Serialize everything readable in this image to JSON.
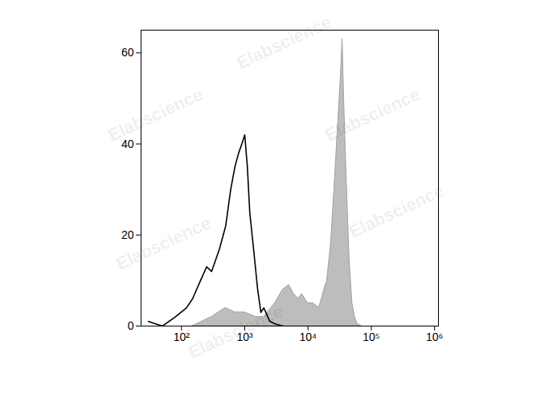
{
  "chart_data": {
    "type": "histogram_overlay",
    "watermark": "Elabscience",
    "log": "x",
    "xlim": [
      23,
      1150000
    ],
    "xticks": [
      {
        "value": 100,
        "label": "10²"
      },
      {
        "value": 1000,
        "label": "10³"
      },
      {
        "value": 10000,
        "label": "10⁴"
      },
      {
        "value": 100000,
        "label": "10⁵"
      },
      {
        "value": 1000000,
        "label": "10⁶"
      }
    ],
    "ylim": [
      0,
      65
    ],
    "yticks": [
      0,
      20,
      40,
      60
    ],
    "series": [
      {
        "type": "area",
        "color": "#bdbdbd",
        "x": [
          150,
          300,
          500,
          700,
          1000,
          1500,
          2000,
          3000,
          4000,
          5000,
          6000,
          7000,
          8000,
          10000,
          12000,
          15000,
          18000,
          20000,
          23000,
          26000,
          30000,
          33000,
          35000,
          37000,
          40000,
          45000,
          50000,
          55000,
          60000,
          70000
        ],
        "values": [
          0,
          2,
          4,
          3,
          3,
          2,
          2,
          5,
          8,
          9,
          7,
          6,
          7,
          5,
          5,
          4,
          8,
          10,
          18,
          30,
          45,
          55,
          63,
          50,
          35,
          15,
          5,
          2,
          0.5,
          0
        ]
      },
      {
        "type": "line",
        "color": "#000000",
        "x": [
          30,
          50,
          80,
          120,
          150,
          200,
          250,
          300,
          400,
          500,
          600,
          700,
          800,
          900,
          1000,
          1100,
          1200,
          1400,
          1600,
          1800,
          2000,
          2500,
          3000,
          4000
        ],
        "values": [
          1,
          0,
          2,
          4,
          6,
          10,
          13,
          12,
          17,
          22,
          30,
          35,
          38,
          40,
          42,
          35,
          25,
          16,
          8,
          3,
          4,
          1,
          0.5,
          0
        ]
      }
    ]
  }
}
